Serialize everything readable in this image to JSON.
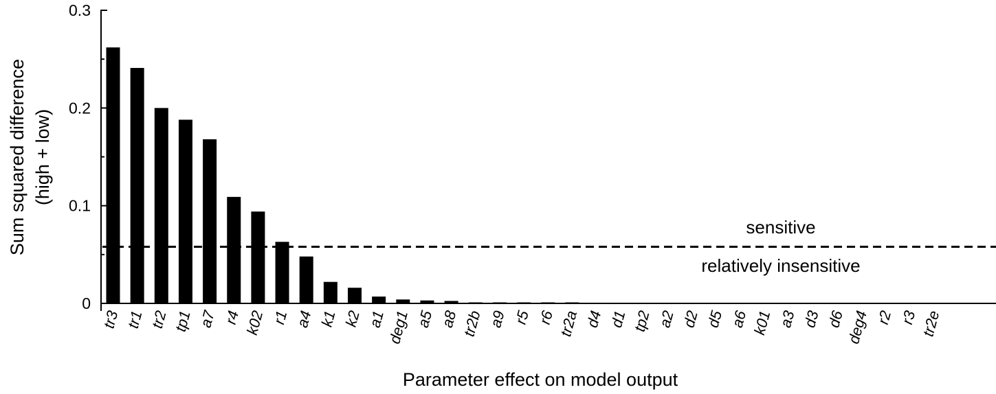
{
  "chart_data": {
    "type": "bar",
    "title": "",
    "xlabel": "Parameter effect on model output",
    "ylabel_line1": "Sum squared difference",
    "ylabel_line2": "(high + low)",
    "ylim": [
      0,
      0.3
    ],
    "yticks": [
      0,
      0.1,
      0.2,
      0.3
    ],
    "ytick_labels": [
      "0",
      "0.1",
      "0.2",
      "0.3"
    ],
    "grid": false,
    "legend": "none",
    "bar_color": "#000000",
    "categories": [
      "tr3",
      "tr1",
      "tr2",
      "tp1",
      "a7",
      "r4",
      "k02",
      "r1",
      "a4",
      "k1",
      "k2",
      "a1",
      "deg1",
      "a5",
      "a8",
      "tr2b",
      "a9",
      "r5",
      "r6",
      "tr2a",
      "d4",
      "d1",
      "tp2",
      "a2",
      "d2",
      "d5",
      "a6",
      "k01",
      "a3",
      "d3",
      "d6",
      "deg4",
      "r2",
      "r3",
      "tr2e"
    ],
    "values": [
      0.262,
      0.241,
      0.2,
      0.188,
      0.168,
      0.109,
      0.094,
      0.063,
      0.048,
      0.022,
      0.016,
      0.007,
      0.004,
      0.003,
      0.0025,
      0.001,
      0.0005,
      0.0005,
      0.0005,
      0.0005,
      0,
      0,
      0,
      0,
      0,
      0,
      0,
      0,
      0,
      0,
      0,
      0,
      0,
      0,
      0
    ],
    "threshold": {
      "value": 0.058,
      "style": "dashed",
      "label_above": "sensitive",
      "label_below": "relatively insensitive"
    }
  }
}
